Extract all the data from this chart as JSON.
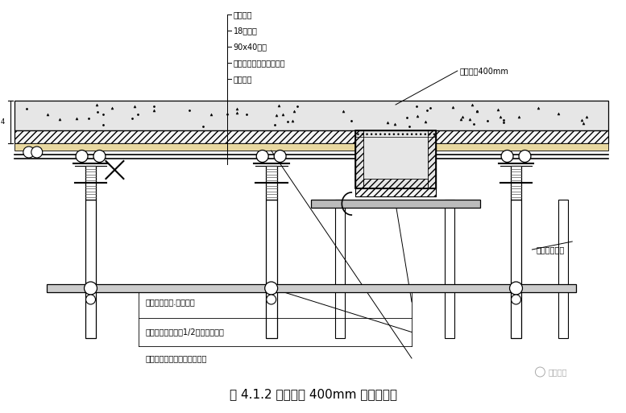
{
  "title": "图 4.1.2 梁高小于 400mm 的内梁加固",
  "bg_color": "#ffffff",
  "labels_left": [
    "结构楼板",
    "18厚模板",
    "90x40木方",
    "木方下的板底加固双钢管",
    "可调顶托"
  ],
  "label_beam": "结构梁＜400mm",
  "label_b1": "梁底附加钢管.扣件连接",
  "label_b2": "梁底步步紧加固，1/2立杆间距布置",
  "label_b3": "梁底木方平放，梁侧木方立放",
  "label_r": "增加梁侧立杆",
  "watermark": "豆丁施工"
}
